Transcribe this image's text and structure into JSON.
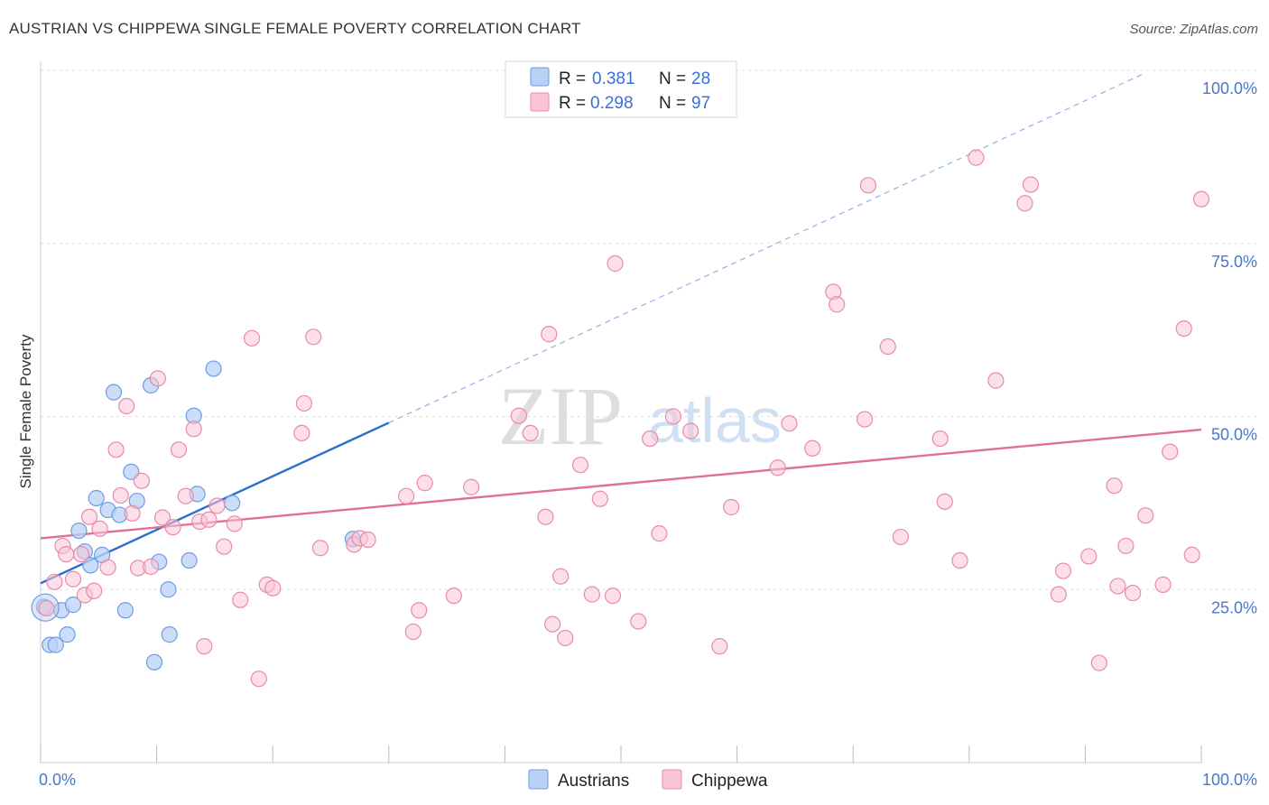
{
  "title": "AUSTRIAN VS CHIPPEWA SINGLE FEMALE POVERTY CORRELATION CHART",
  "source": "Source: ZipAtlas.com",
  "watermark": {
    "zip": "ZIP",
    "atlas": "atlas"
  },
  "colors": {
    "austrians_fill": "#b9d1f5",
    "austrians_stroke": "#6f9be0",
    "austrians_line": "#2a6fce",
    "chippewa_fill": "#f9c5d5",
    "chippewa_stroke": "#e88aaa",
    "chippewa_line": "#e07097",
    "grid": "#dddddd",
    "axis_label": "#4a77c8"
  },
  "legend": {
    "row1": {
      "r_label": "R =",
      "r_value": "0.381",
      "n_label": "N =",
      "n_value": "28"
    },
    "row2": {
      "r_label": "R =",
      "r_value": "0.298",
      "n_label": "N =",
      "n_value": "97"
    }
  },
  "chart_data": {
    "type": "scatter",
    "title": "AUSTRIAN VS CHIPPEWA SINGLE FEMALE POVERTY CORRELATION CHART",
    "xlabel": "",
    "ylabel": "Single Female Poverty",
    "xlim": [
      0,
      100
    ],
    "ylim": [
      0,
      100
    ],
    "x_tick_labels": [
      {
        "value": 0,
        "label": "0.0%"
      },
      {
        "value": 100,
        "label": "100.0%"
      }
    ],
    "y_tick_labels": [
      {
        "value": 25,
        "label": "25.0%"
      },
      {
        "value": 50,
        "label": "50.0%"
      },
      {
        "value": 75,
        "label": "75.0%"
      },
      {
        "value": 100,
        "label": "100.0%"
      }
    ],
    "bottom_legend": [
      "Austrians",
      "Chippewa"
    ],
    "series": [
      {
        "name": "Austrians",
        "R": 0.381,
        "N": 28,
        "trend": {
          "x0": 0,
          "y0": 25.9,
          "x1": 30,
          "y1": 49.1,
          "dashed_to_x": 95,
          "dashed_to_y": 99.5
        },
        "points": [
          [
            0.3,
            22.5
          ],
          [
            0.8,
            17
          ],
          [
            1.3,
            17
          ],
          [
            1.8,
            22
          ],
          [
            2.3,
            18.5
          ],
          [
            2.8,
            22.8
          ],
          [
            3.3,
            33.5
          ],
          [
            3.8,
            30.5
          ],
          [
            4.3,
            28.5
          ],
          [
            4.8,
            38.2
          ],
          [
            5.3,
            30
          ],
          [
            5.8,
            36.5
          ],
          [
            6.3,
            53.5
          ],
          [
            6.8,
            35.8
          ],
          [
            7.3,
            22
          ],
          [
            7.8,
            42
          ],
          [
            8.3,
            37.8
          ],
          [
            9.5,
            54.5
          ],
          [
            9.8,
            14.5
          ],
          [
            10.2,
            29
          ],
          [
            11,
            25
          ],
          [
            11.1,
            18.5
          ],
          [
            12.8,
            29.2
          ],
          [
            13.5,
            38.8
          ],
          [
            13.2,
            50.1
          ],
          [
            14.9,
            56.9
          ],
          [
            16.5,
            37.5
          ],
          [
            26.9,
            32.3
          ]
        ]
      },
      {
        "name": "Chippewa",
        "R": 0.298,
        "N": 97,
        "trend": {
          "x0": 0,
          "y0": 32.4,
          "x1": 100,
          "y1": 48.1
        },
        "points": [
          [
            0.5,
            22.3
          ],
          [
            1.2,
            26.1
          ],
          [
            1.9,
            31.3
          ],
          [
            2.2,
            30.1
          ],
          [
            2.8,
            26.5
          ],
          [
            3.5,
            30.1
          ],
          [
            3.8,
            24.2
          ],
          [
            4.2,
            35.5
          ],
          [
            4.6,
            24.8
          ],
          [
            5.1,
            33.8
          ],
          [
            5.8,
            28.2
          ],
          [
            6.5,
            45.2
          ],
          [
            6.9,
            38.6
          ],
          [
            7.4,
            51.5
          ],
          [
            7.9,
            36
          ],
          [
            8.4,
            28.1
          ],
          [
            8.7,
            40.7
          ],
          [
            9.5,
            28.3
          ],
          [
            10.1,
            55.5
          ],
          [
            10.5,
            35.4
          ],
          [
            11.4,
            34
          ],
          [
            11.9,
            45.2
          ],
          [
            12.5,
            38.5
          ],
          [
            13.2,
            48.2
          ],
          [
            13.7,
            34.8
          ],
          [
            14.1,
            16.8
          ],
          [
            14.5,
            35.1
          ],
          [
            15.2,
            37.1
          ],
          [
            15.8,
            31.2
          ],
          [
            16.7,
            34.5
          ],
          [
            17.2,
            23.5
          ],
          [
            18.2,
            61.3
          ],
          [
            18.8,
            12.1
          ],
          [
            19.5,
            25.7
          ],
          [
            20,
            25.2
          ],
          [
            22.5,
            47.6
          ],
          [
            22.7,
            51.9
          ],
          [
            23.5,
            61.5
          ],
          [
            24.1,
            31
          ],
          [
            27,
            31.5
          ],
          [
            27.5,
            32.4
          ],
          [
            28.2,
            32.2
          ],
          [
            31.5,
            38.5
          ],
          [
            32.1,
            18.9
          ],
          [
            32.6,
            22
          ],
          [
            33.1,
            40.4
          ],
          [
            35.6,
            24.1
          ],
          [
            37.1,
            39.8
          ],
          [
            41.2,
            50.1
          ],
          [
            42.2,
            47.6
          ],
          [
            43.5,
            35.5
          ],
          [
            43.8,
            61.9
          ],
          [
            44.1,
            20
          ],
          [
            44.8,
            26.9
          ],
          [
            45.2,
            18
          ],
          [
            47.5,
            24.3
          ],
          [
            48.2,
            38.1
          ],
          [
            49.3,
            24.1
          ],
          [
            49.5,
            72.1
          ],
          [
            51.5,
            20.4
          ],
          [
            52.5,
            46.8
          ],
          [
            53.3,
            33.1
          ],
          [
            54.5,
            50
          ],
          [
            56,
            47.9
          ],
          [
            58.5,
            16.8
          ],
          [
            59.5,
            36.9
          ],
          [
            63.5,
            42.6
          ],
          [
            64.5,
            49
          ],
          [
            66.5,
            45.4
          ],
          [
            68.3,
            68
          ],
          [
            68.6,
            66.2
          ],
          [
            71,
            49.6
          ],
          [
            71.3,
            83.4
          ],
          [
            73,
            60.1
          ],
          [
            74.1,
            32.6
          ],
          [
            77.5,
            46.8
          ],
          [
            77.9,
            37.7
          ],
          [
            79.2,
            29.2
          ],
          [
            80.6,
            87.4
          ],
          [
            82.3,
            55.2
          ],
          [
            84.8,
            80.8
          ],
          [
            85.3,
            83.5
          ],
          [
            87.7,
            24.3
          ],
          [
            88.1,
            27.7
          ],
          [
            90.3,
            29.8
          ],
          [
            91.2,
            14.4
          ],
          [
            92.5,
            40
          ],
          [
            92.8,
            25.5
          ],
          [
            93.5,
            31.3
          ],
          [
            94.1,
            24.5
          ],
          [
            95.2,
            35.7
          ],
          [
            96.7,
            25.7
          ],
          [
            97.3,
            44.9
          ],
          [
            98.5,
            62.7
          ],
          [
            99.2,
            30
          ],
          [
            100,
            81.4
          ],
          [
            46.5,
            43
          ]
        ]
      }
    ]
  }
}
